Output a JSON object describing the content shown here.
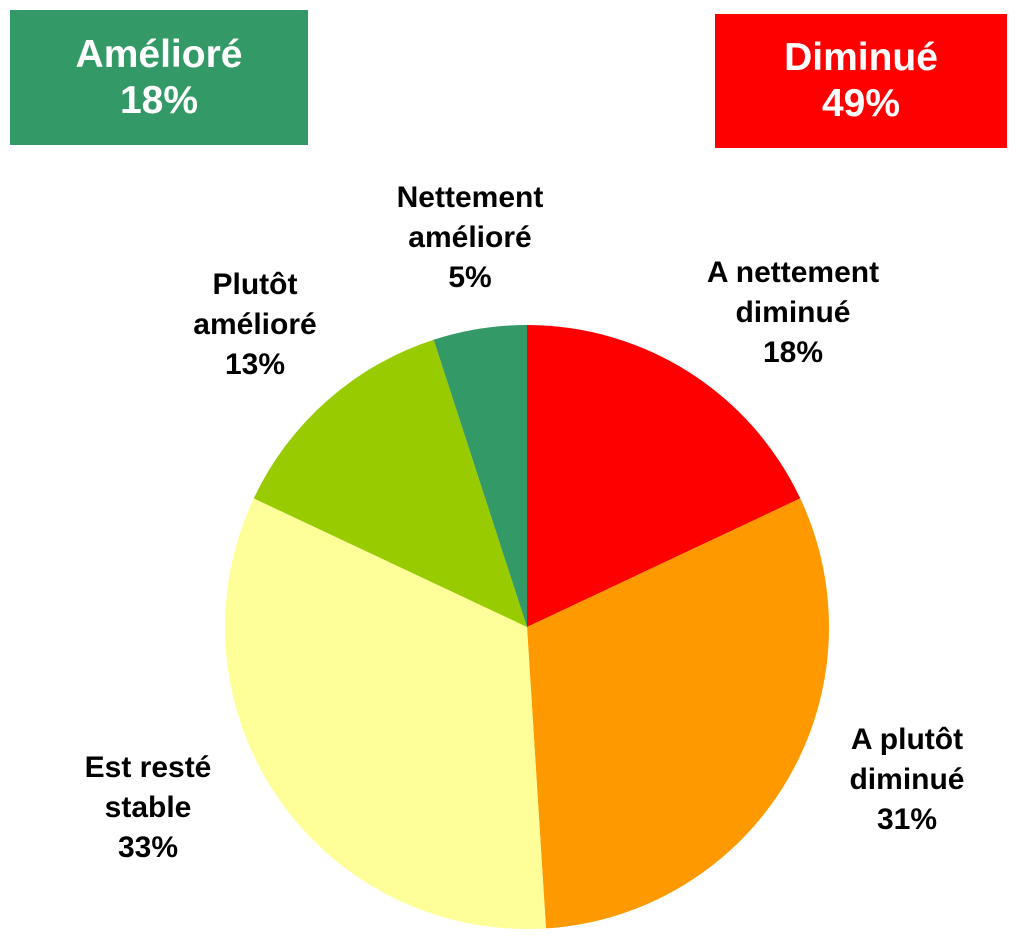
{
  "chart_data": {
    "type": "pie",
    "categories": [
      "A nettement diminué",
      "A plutôt diminué",
      "Est resté stable",
      "Plutôt amélioré",
      "Nettement amélioré"
    ],
    "values": [
      18,
      31,
      33,
      13,
      5
    ],
    "value_labels": [
      "18%",
      "31%",
      "33%",
      "13%",
      "5%"
    ],
    "colors": [
      "#ff0000",
      "#ff9900",
      "#ffff99",
      "#99cc00",
      "#339966"
    ],
    "annotations": [
      {
        "label": "Amélioré",
        "value_label": "18%",
        "color": "#339966"
      },
      {
        "label": "Diminué",
        "value_label": "49%",
        "color": "#ff0000"
      }
    ]
  }
}
